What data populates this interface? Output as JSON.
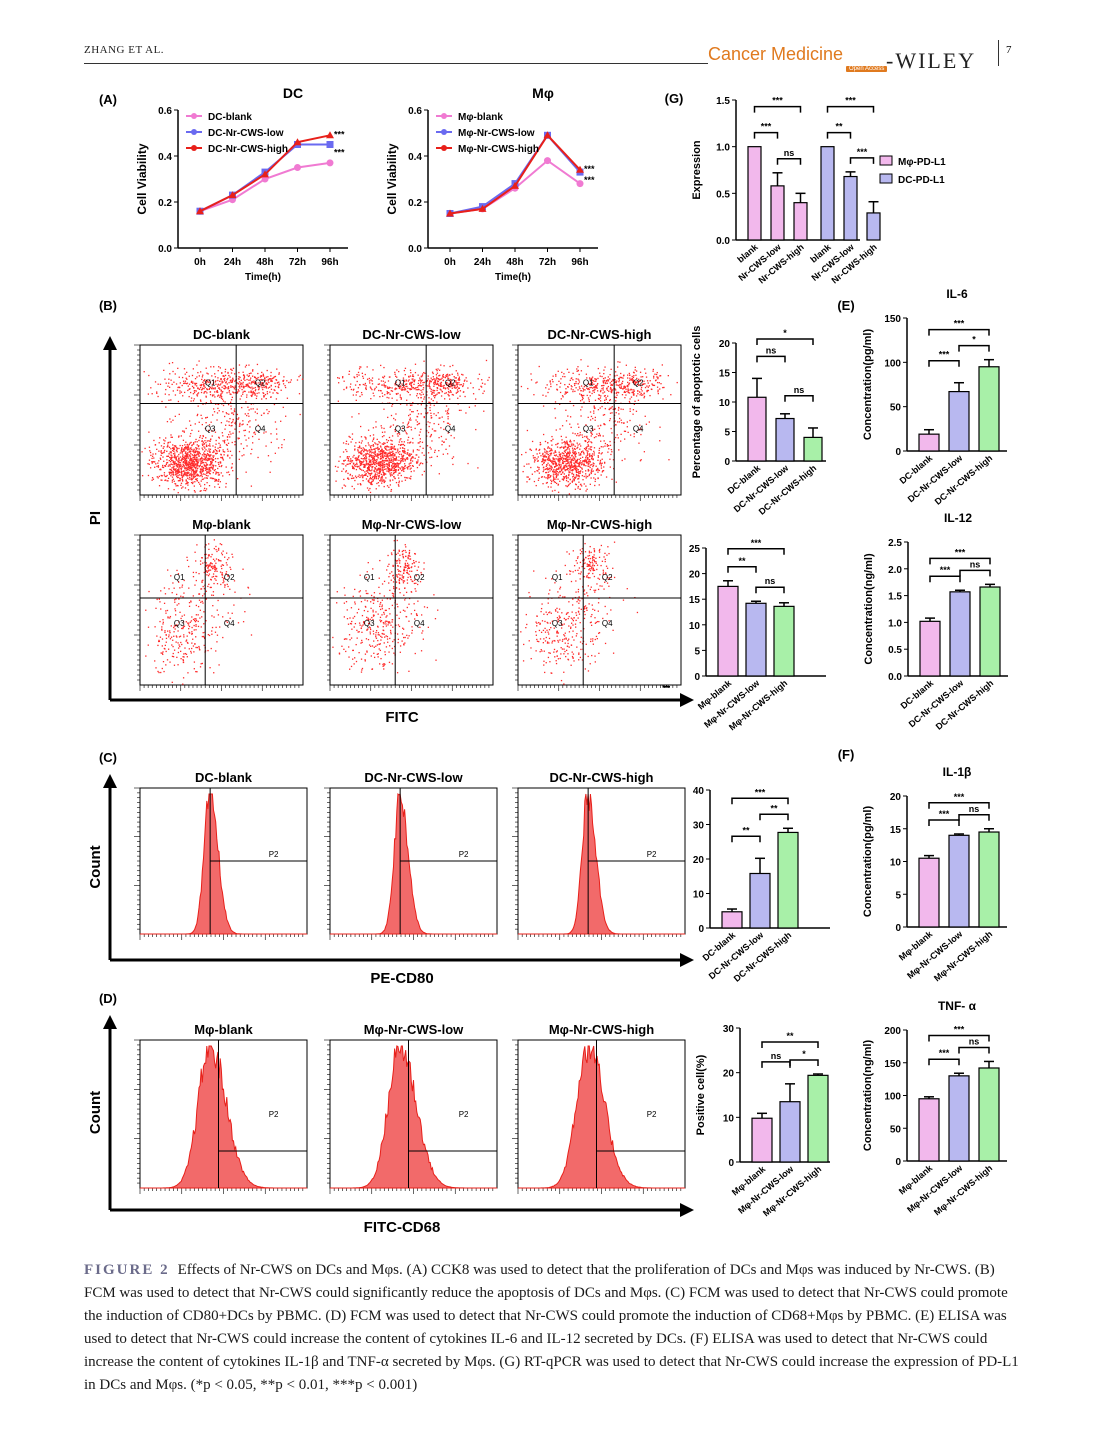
{
  "header": {
    "running_head": "ZHANG ET AL.",
    "journal": "Cancer Medicine",
    "open_access": "Open Access",
    "publisher": "-WILEY",
    "page_number": "7"
  },
  "colors": {
    "pink": "#f07ad2",
    "blue": "#6a6af0",
    "red": "#e8201a",
    "green": "#a8f0a8",
    "lavender": "#b8b8f0",
    "pinkbar": "#f2b8ec",
    "scatter": "#ff2a2a"
  },
  "panel_labels": [
    "(A)",
    "(B)",
    "(C)",
    "(D)",
    "(E)",
    "(F)",
    "(G)"
  ],
  "panel_a": {
    "charts": [
      {
        "type": "line",
        "title": "DC",
        "ylabel": "Cell Viability",
        "xlabel": "Time(h)",
        "categories": [
          "0h",
          "24h",
          "48h",
          "72h",
          "96h"
        ],
        "ylim": [
          0,
          0.6
        ],
        "yticks": [
          "0.0",
          "0.2",
          "0.4",
          "0.6"
        ],
        "series": [
          {
            "name": "DC-blank",
            "values": [
              0.16,
              0.21,
              0.3,
              0.35,
              0.37
            ]
          },
          {
            "name": "DC-Nr-CWS-low",
            "values": [
              0.16,
              0.23,
              0.33,
              0.45,
              0.45
            ]
          },
          {
            "name": "DC-Nr-CWS-high",
            "values": [
              0.16,
              0.23,
              0.32,
              0.46,
              0.49
            ]
          }
        ],
        "annotations": [
          "***",
          "***"
        ]
      },
      {
        "type": "line",
        "title": "Mφ",
        "ylabel": "Cell Viability",
        "xlabel": "Time(h)",
        "categories": [
          "0h",
          "24h",
          "48h",
          "72h",
          "96h"
        ],
        "ylim": [
          0,
          0.6
        ],
        "yticks": [
          "0.0",
          "0.2",
          "0.4",
          "0.6"
        ],
        "series": [
          {
            "name": "Mφ-blank",
            "values": [
              0.15,
              0.17,
              0.26,
              0.38,
              0.28
            ]
          },
          {
            "name": "Mφ-Nr-CWS-low",
            "values": [
              0.15,
              0.18,
              0.28,
              0.49,
              0.33
            ]
          },
          {
            "name": "Mφ-Nr-CWS-high",
            "values": [
              0.15,
              0.17,
              0.27,
              0.49,
              0.34
            ]
          }
        ],
        "annotations": [
          "***",
          "***"
        ]
      }
    ]
  },
  "panel_b": {
    "y_axis_label": "PI",
    "x_axis_label": "FITC",
    "rows": [
      {
        "titles": [
          "DC-blank",
          "DC-Nr-CWS-low",
          "DC-Nr-CWS-high"
        ]
      },
      {
        "titles": [
          "Mφ-blank",
          "Mφ-Nr-CWS-low",
          "Mφ-Nr-CWS-high"
        ]
      }
    ],
    "quadrant_labels": [
      "Q1",
      "Q2",
      "Q3",
      "Q4"
    ]
  },
  "panel_c": {
    "y_axis_label": "Count",
    "x_axis_label": "PE-CD80",
    "titles": [
      "DC-blank",
      "DC-Nr-CWS-low",
      "DC-Nr-CWS-high"
    ],
    "gate": "P2"
  },
  "panel_d": {
    "y_axis_label": "Count",
    "x_axis_label": "FITC-CD68",
    "titles": [
      "Mφ-blank",
      "Mφ-Nr-CWS-low",
      "Mφ-Nr-CWS-high"
    ],
    "gate": "P2"
  },
  "chart_data": [
    {
      "id": "G",
      "type": "bar",
      "title": "",
      "ylabel": "Expression",
      "ylim": [
        0,
        1.5
      ],
      "yticks": [
        "0.0",
        "0.5",
        "1.0",
        "1.5"
      ],
      "categories": [
        "blank",
        "Nr-CWS-low",
        "Nr-CWS-high",
        "blank",
        "Nr-CWS-low",
        "Nr-CWS-high"
      ],
      "values": [
        1.0,
        0.58,
        0.4,
        1.0,
        0.68,
        0.29
      ],
      "errors": [
        0.0,
        0.14,
        0.1,
        0.0,
        0.05,
        0.12
      ],
      "legend": [
        "Mφ-PD-L1",
        "DC-PD-L1"
      ],
      "sig": [
        "***",
        "***",
        "ns",
        "***",
        "**",
        "***"
      ]
    },
    {
      "id": "B1",
      "type": "bar",
      "ylabel": "Percentage of apoptotic cells",
      "ylim": [
        0,
        20
      ],
      "yticks": [
        "0",
        "5",
        "10",
        "15",
        "20"
      ],
      "categories": [
        "DC-blank",
        "DC-Nr-CWS-low",
        "DC-Nr-CWS-high"
      ],
      "values": [
        10.8,
        7.2,
        4.0
      ],
      "errors": [
        3.2,
        0.8,
        1.6
      ],
      "sig": [
        "ns",
        "*",
        "ns"
      ]
    },
    {
      "id": "B2",
      "type": "bar",
      "ylabel": "Percentage of apoptotic cells",
      "ylim": [
        0,
        25
      ],
      "yticks": [
        "0",
        "5",
        "10",
        "15",
        "20",
        "25"
      ],
      "categories": [
        "Mφ-blank",
        "Mφ-Nr-CWS-low",
        "Mφ-Nr-CWS-high"
      ],
      "values": [
        17.5,
        14.2,
        13.6
      ],
      "errors": [
        1.1,
        0.4,
        0.7
      ],
      "sig": [
        "**",
        "***",
        "ns"
      ]
    },
    {
      "id": "C",
      "type": "bar",
      "ylabel": "Positive cell(%)",
      "ylim": [
        0,
        40
      ],
      "yticks": [
        "0",
        "10",
        "20",
        "30",
        "40"
      ],
      "categories": [
        "DC-blank",
        "DC-Nr-CWS-low",
        "DC-Nr-CWS-high"
      ],
      "values": [
        4.7,
        15.8,
        27.7
      ],
      "errors": [
        0.8,
        4.4,
        1.2
      ],
      "sig": [
        "**",
        "***",
        "**"
      ]
    },
    {
      "id": "D",
      "type": "bar",
      "ylabel": "Positive cell(%)",
      "ylim": [
        0,
        30
      ],
      "yticks": [
        "0",
        "10",
        "20",
        "30"
      ],
      "categories": [
        "Mφ-blank",
        "Mφ-Nr-CWS-low",
        "Mφ-Nr-CWS-high"
      ],
      "values": [
        9.8,
        13.5,
        19.4
      ],
      "errors": [
        1.1,
        4.0,
        0.3
      ],
      "sig": [
        "ns",
        "**",
        "*"
      ]
    },
    {
      "id": "E1",
      "type": "bar",
      "title": "IL-6",
      "ylabel": "Concentration(pg/ml)",
      "ylim": [
        0,
        150
      ],
      "yticks": [
        "0",
        "50",
        "100",
        "150"
      ],
      "categories": [
        "DC-blank",
        "DC-Nr-CWS-low",
        "DC-Nr-CWS-high"
      ],
      "values": [
        19,
        67,
        95
      ],
      "errors": [
        5,
        10,
        8
      ],
      "sig": [
        "***",
        "***",
        "*"
      ]
    },
    {
      "id": "E2",
      "type": "bar",
      "title": "IL-12",
      "ylabel": "Concentration(ng/ml)",
      "ylim": [
        0,
        2.5
      ],
      "yticks": [
        "0.0",
        "0.5",
        "1.0",
        "1.5",
        "2.0",
        "2.5"
      ],
      "categories": [
        "DC-blank",
        "DC-Nr-CWS-low",
        "DC-Nr-CWS-high"
      ],
      "values": [
        1.02,
        1.57,
        1.66
      ],
      "errors": [
        0.06,
        0.03,
        0.05
      ],
      "sig": [
        "***",
        "***",
        "ns"
      ]
    },
    {
      "id": "F1",
      "type": "bar",
      "title": "IL-1β",
      "ylabel": "Concentration(pg/ml)",
      "ylim": [
        0,
        20
      ],
      "yticks": [
        "0",
        "5",
        "10",
        "15",
        "20"
      ],
      "categories": [
        "Mφ-blank",
        "Mφ-Nr-CWS-low",
        "Mφ-Nr-CWS-high"
      ],
      "values": [
        10.5,
        14.0,
        14.5
      ],
      "errors": [
        0.4,
        0.2,
        0.5
      ],
      "sig": [
        "***",
        "***",
        "ns"
      ]
    },
    {
      "id": "F2",
      "type": "bar",
      "title": "TNF- α",
      "ylabel": "Concentration(ng/ml)",
      "ylim": [
        0,
        200
      ],
      "yticks": [
        "0",
        "50",
        "100",
        "150",
        "200"
      ],
      "categories": [
        "Mφ-blank",
        "Mφ-Nr-CWS-low",
        "Mφ-Nr-CWS-high"
      ],
      "values": [
        95,
        130,
        142
      ],
      "errors": [
        3,
        4,
        10
      ],
      "sig": [
        "***",
        "***",
        "ns"
      ]
    }
  ],
  "caption": {
    "label": "FIGURE 2",
    "text": "Effects of Nr-CWS on DCs and Mφs. (A) CCK8 was used to detect that the proliferation of DCs and Mφs was induced by Nr-CWS. (B) FCM was used to detect that Nr-CWS could significantly reduce the apoptosis of DCs and Mφs. (C) FCM was used to detect that Nr-CWS could promote the induction of CD80+DCs by PBMC. (D) FCM was used to detect that Nr-CWS could promote the induction of CD68+Mφs by PBMC. (E) ELISA was used to detect that Nr-CWS could increase the content of cytokines IL-6 and IL-12 secreted by DCs. (F) ELISA was used to detect that Nr-CWS could increase the content of cytokines IL-1β and TNF-α secreted by Mφs. (G) RT-qPCR was used to detect that Nr-CWS could increase the expression of PD-L1 in DCs and Mφs. (*p < 0.05, **p < 0.01, ***p < 0.001)"
  }
}
